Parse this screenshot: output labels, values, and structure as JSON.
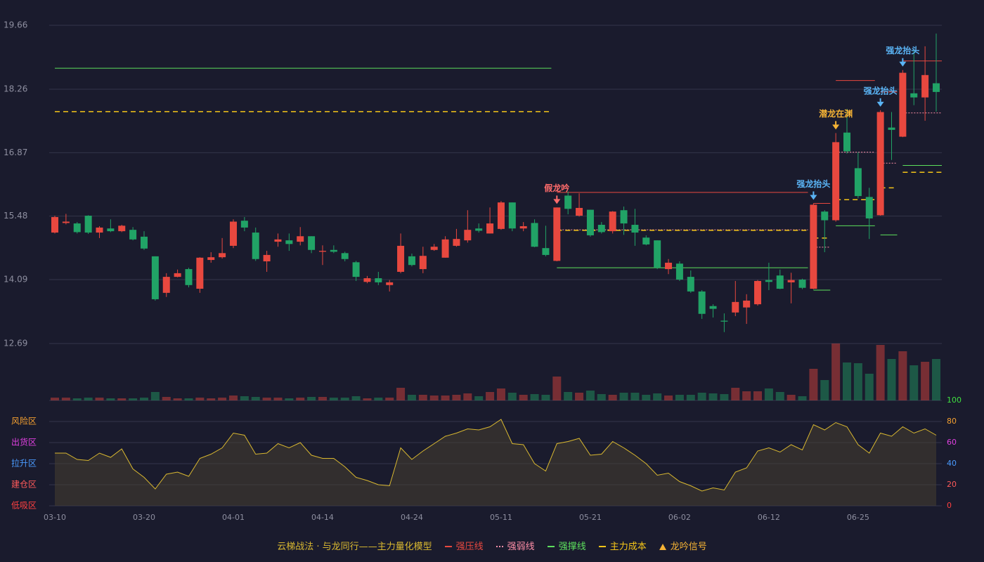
{
  "chart_data": {
    "type": "candlestick",
    "categories": [
      "03-10",
      null,
      null,
      null,
      null,
      null,
      null,
      null,
      "03-20",
      null,
      null,
      null,
      null,
      null,
      null,
      null,
      "04-01",
      null,
      null,
      null,
      null,
      null,
      null,
      null,
      "04-14",
      null,
      null,
      null,
      null,
      null,
      null,
      null,
      "04-24",
      null,
      null,
      null,
      null,
      null,
      null,
      null,
      "05-11",
      null,
      null,
      null,
      null,
      null,
      null,
      null,
      "05-21",
      null,
      null,
      null,
      null,
      null,
      null,
      null,
      "06-02",
      null,
      null,
      null,
      null,
      null,
      null,
      null,
      "06-12",
      null,
      null,
      null,
      null,
      null,
      null,
      null,
      "06-25",
      null,
      null,
      null,
      null,
      null,
      null,
      null
    ],
    "ohlc": [
      [
        15.12,
        15.49,
        15.1,
        15.46
      ],
      [
        15.33,
        15.53,
        15.3,
        15.36
      ],
      [
        15.32,
        15.35,
        15.1,
        15.13
      ],
      [
        15.49,
        15.5,
        15.09,
        15.12
      ],
      [
        15.12,
        15.26,
        15.0,
        15.23
      ],
      [
        15.21,
        15.41,
        15.13,
        15.15
      ],
      [
        15.15,
        15.29,
        15.13,
        15.27
      ],
      [
        15.18,
        15.24,
        14.95,
        14.97
      ],
      [
        15.03,
        15.15,
        14.74,
        14.77
      ],
      [
        14.6,
        14.6,
        13.63,
        13.66
      ],
      [
        13.8,
        14.23,
        13.71,
        14.15
      ],
      [
        14.15,
        14.31,
        14.14,
        14.23
      ],
      [
        14.32,
        14.35,
        13.92,
        13.97
      ],
      [
        13.89,
        14.58,
        13.8,
        14.57
      ],
      [
        14.52,
        14.69,
        14.46,
        14.58
      ],
      [
        14.58,
        15.0,
        14.55,
        14.67
      ],
      [
        14.83,
        15.41,
        14.78,
        15.36
      ],
      [
        15.38,
        15.46,
        15.15,
        15.23
      ],
      [
        15.12,
        15.23,
        14.5,
        14.54
      ],
      [
        14.49,
        14.72,
        14.26,
        14.63
      ],
      [
        14.92,
        15.1,
        14.81,
        14.97
      ],
      [
        14.95,
        15.1,
        14.72,
        14.87
      ],
      [
        14.92,
        15.24,
        14.84,
        15.04
      ],
      [
        15.04,
        15.04,
        14.67,
        14.74
      ],
      [
        14.7,
        14.84,
        14.41,
        14.72
      ],
      [
        14.74,
        14.84,
        14.67,
        14.7
      ],
      [
        14.67,
        14.7,
        14.49,
        14.54
      ],
      [
        14.47,
        14.5,
        14.06,
        14.15
      ],
      [
        14.04,
        14.17,
        14.01,
        14.12
      ],
      [
        14.12,
        14.26,
        13.97,
        14.03
      ],
      [
        13.97,
        14.08,
        13.83,
        14.03
      ],
      [
        14.26,
        15.1,
        14.23,
        14.83
      ],
      [
        14.6,
        14.66,
        14.38,
        14.41
      ],
      [
        14.32,
        14.81,
        14.23,
        14.61
      ],
      [
        14.74,
        14.87,
        14.72,
        14.81
      ],
      [
        14.57,
        15.04,
        14.57,
        14.97
      ],
      [
        14.83,
        15.2,
        14.81,
        14.98
      ],
      [
        14.95,
        15.61,
        14.9,
        15.18
      ],
      [
        15.21,
        15.32,
        15.12,
        15.16
      ],
      [
        15.1,
        15.67,
        15.1,
        15.32
      ],
      [
        15.2,
        15.81,
        15.18,
        15.78
      ],
      [
        15.78,
        15.78,
        15.15,
        15.21
      ],
      [
        15.21,
        15.35,
        15.15,
        15.26
      ],
      [
        15.33,
        15.41,
        14.8,
        14.81
      ],
      [
        14.78,
        15.27,
        14.6,
        14.63
      ],
      [
        14.5,
        15.67,
        14.49,
        15.67
      ],
      [
        15.93,
        16.02,
        15.52,
        15.64
      ],
      [
        15.49,
        15.98,
        15.47,
        15.66
      ],
      [
        15.62,
        15.62,
        15.03,
        15.06
      ],
      [
        15.29,
        15.35,
        15.1,
        15.13
      ],
      [
        15.15,
        15.59,
        15.1,
        15.58
      ],
      [
        15.61,
        15.69,
        15.07,
        15.32
      ],
      [
        15.29,
        15.64,
        14.83,
        15.12
      ],
      [
        15.01,
        15.06,
        14.84,
        14.86
      ],
      [
        14.95,
        14.95,
        14.32,
        14.35
      ],
      [
        14.32,
        14.54,
        14.21,
        14.46
      ],
      [
        14.44,
        14.49,
        14.06,
        14.09
      ],
      [
        14.15,
        14.29,
        13.8,
        13.83
      ],
      [
        13.83,
        13.86,
        13.23,
        13.34
      ],
      [
        13.51,
        13.55,
        13.26,
        13.45
      ],
      [
        13.19,
        13.35,
        12.94,
        13.17
      ],
      [
        13.37,
        14.06,
        13.29,
        13.6
      ],
      [
        13.48,
        13.77,
        13.12,
        13.63
      ],
      [
        13.55,
        14.08,
        13.52,
        14.06
      ],
      [
        14.08,
        14.46,
        13.86,
        14.04
      ],
      [
        14.18,
        14.31,
        13.88,
        13.89
      ],
      [
        14.03,
        14.24,
        13.57,
        14.08
      ],
      [
        14.09,
        14.11,
        13.88,
        13.91
      ],
      [
        13.89,
        15.76,
        13.88,
        15.73
      ],
      [
        15.58,
        15.61,
        14.69,
        15.39
      ],
      [
        15.39,
        17.3,
        15.36,
        17.1
      ],
      [
        17.31,
        17.83,
        16.85,
        16.9
      ],
      [
        16.53,
        16.88,
        15.87,
        15.92
      ],
      [
        15.9,
        16.1,
        14.98,
        15.43
      ],
      [
        15.5,
        17.8,
        15.49,
        17.76
      ],
      [
        17.42,
        17.76,
        16.71,
        17.37
      ],
      [
        17.22,
        18.68,
        17.21,
        18.62
      ],
      [
        18.17,
        19.14,
        17.91,
        18.08
      ],
      [
        18.08,
        19.2,
        17.57,
        18.57
      ],
      [
        18.39,
        19.48,
        17.77,
        18.2
      ]
    ],
    "up_color": "#e8483f",
    "down_color": "#21a366",
    "ylim": [
      12.69,
      19.66
    ],
    "yticks": [
      12.69,
      14.09,
      15.48,
      16.87,
      18.26,
      19.66
    ],
    "grid": true,
    "volume": [
      4,
      4,
      3,
      4,
      4,
      3,
      3,
      3,
      4,
      12,
      5,
      3,
      3,
      4,
      3,
      4,
      7,
      6,
      5,
      4,
      4,
      3,
      4,
      5,
      5,
      4,
      4,
      6,
      3,
      4,
      4,
      18,
      8,
      8,
      7,
      7,
      8,
      10,
      6,
      12,
      17,
      11,
      8,
      9,
      8,
      34,
      12,
      11,
      14,
      9,
      8,
      11,
      11,
      8,
      10,
      7,
      8,
      8,
      11,
      10,
      9,
      18,
      13,
      13,
      17,
      12,
      8,
      6,
      45,
      29,
      81,
      54,
      53,
      38,
      79,
      59,
      70,
      50,
      55,
      59
    ],
    "levels": [
      {
        "name": "强压线",
        "color": "#e8483f",
        "dash": "solid",
        "segments": [
          {
            "start": 45,
            "end": 67,
            "value": 16.0
          },
          {
            "start": 68,
            "end": 69,
            "value": 15.76
          },
          {
            "start": 70,
            "end": 73,
            "value": 18.45
          },
          {
            "start": 74,
            "end": 75,
            "value": 18.2
          },
          {
            "start": 76,
            "end": 79,
            "value": 18.88
          }
        ]
      },
      {
        "name": "强弱线",
        "color": "#ff8fa8",
        "dash": "dotted",
        "segments": [
          {
            "start": 45,
            "end": 67,
            "value": 15.18
          },
          {
            "start": 68,
            "end": 69,
            "value": 14.8
          },
          {
            "start": 70,
            "end": 73,
            "value": 16.88
          },
          {
            "start": 74,
            "end": 75,
            "value": 16.64
          },
          {
            "start": 76,
            "end": 79,
            "value": 17.74
          }
        ]
      },
      {
        "name": "强撑线",
        "color": "#5de05d",
        "dash": "solid",
        "segments": [
          {
            "start": 0,
            "end": 44,
            "value": 18.72
          },
          {
            "start": 45,
            "end": 67,
            "value": 14.35
          },
          {
            "start": 68,
            "end": 69,
            "value": 13.86
          },
          {
            "start": 70,
            "end": 73,
            "value": 15.27
          },
          {
            "start": 74,
            "end": 75,
            "value": 15.07
          },
          {
            "start": 76,
            "end": 79,
            "value": 16.59
          }
        ]
      },
      {
        "name": "主力成本",
        "color": "#f5c518",
        "dash": "dashed",
        "segments": [
          {
            "start": 0,
            "end": 44,
            "value": 17.77
          },
          {
            "start": 45,
            "end": 67,
            "value": 15.17
          },
          {
            "start": 68,
            "end": 69,
            "value": 15.0
          },
          {
            "start": 70,
            "end": 73,
            "value": 15.84
          },
          {
            "start": 74,
            "end": 75,
            "value": 16.1
          },
          {
            "start": 76,
            "end": 79,
            "value": 16.44
          }
        ]
      }
    ],
    "signals": [
      {
        "index": 45,
        "label": "假龙吟",
        "color": "#ff6b6b"
      },
      {
        "index": 68,
        "label": "强龙抬头",
        "color": "#5ab4f5"
      },
      {
        "index": 70,
        "label": "潜龙在渊",
        "color": "#f5b335"
      },
      {
        "index": 74,
        "label": "强龙抬头",
        "color": "#5ab4f5"
      },
      {
        "index": 76,
        "label": "强龙抬头",
        "color": "#5ab4f5"
      }
    ],
    "signal_legend": {
      "name": "龙吟信号",
      "color": "#f5b335"
    },
    "indicator": {
      "name": "云梯战法 · 与龙同行——主力量化模型",
      "color": "#d9b830",
      "values": [
        50,
        50,
        44,
        43,
        50,
        46,
        54,
        35,
        27,
        16,
        30,
        32,
        28,
        45,
        49,
        55,
        69,
        67,
        49,
        50,
        59,
        55,
        60,
        48,
        45,
        45,
        37,
        27,
        24,
        20,
        19,
        55,
        44,
        52,
        59,
        66,
        69,
        73,
        72,
        75,
        82,
        59,
        58,
        40,
        33,
        59,
        61,
        64,
        48,
        49,
        61,
        55,
        48,
        40,
        29,
        31,
        23,
        19,
        14,
        17,
        15,
        32,
        36,
        52,
        55,
        51,
        58,
        53,
        77,
        72,
        79,
        75,
        58,
        50,
        69,
        66,
        75,
        69,
        73,
        67
      ],
      "ylim": [
        0,
        100
      ],
      "yticks": [
        0,
        20,
        40,
        60,
        80,
        100
      ],
      "tick_colors": [
        "#ff4040",
        "#ff5a5a",
        "#4a9bff",
        "#e040e0",
        "#f5a030",
        "#40e040"
      ],
      "zones": [
        {
          "label": "风险区",
          "value": 80,
          "color": "#f5a030"
        },
        {
          "label": "出货区",
          "value": 60,
          "color": "#e040e0"
        },
        {
          "label": "拉升区",
          "value": 40,
          "color": "#4a9bff"
        },
        {
          "label": "建仓区",
          "value": 20,
          "color": "#ff5a5a"
        },
        {
          "label": "低吸区",
          "value": 0,
          "color": "#ff4040"
        }
      ]
    }
  }
}
